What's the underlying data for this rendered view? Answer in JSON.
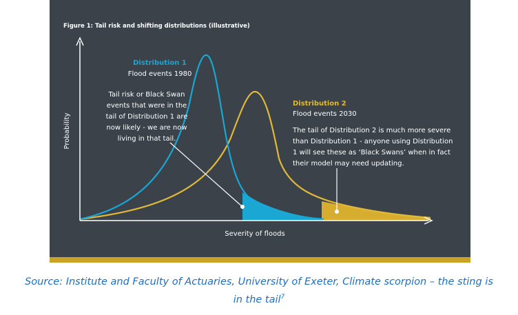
{
  "figure": {
    "title": "Figure 1: Tail risk and shifting distributions (illustrative)",
    "y_label": "Probability",
    "x_label": "Severity of floods",
    "distributions": [
      {
        "name": "Distribution 1",
        "subtitle": "Flood events 1980",
        "note": [
          "Tail risk or Black Swan",
          "events that were in the",
          "tail of Distribution 1 are",
          "now likely - we are now",
          "living in that tail."
        ]
      },
      {
        "name": "Distribution 2",
        "subtitle": "Flood events 2030",
        "note": [
          "The tail of Distribution 2 is much more severe",
          "than Distribution 1 - anyone using Distribution",
          "1 will see these as ‘Black Swans’ when in fact",
          "their model may need updating."
        ]
      }
    ]
  },
  "source": {
    "line1": "Source: Institute and Faculty of Actuaries, University of Exeter, Climate scorpion – the sting is",
    "line2": "in the tail",
    "footnote": "7"
  }
}
